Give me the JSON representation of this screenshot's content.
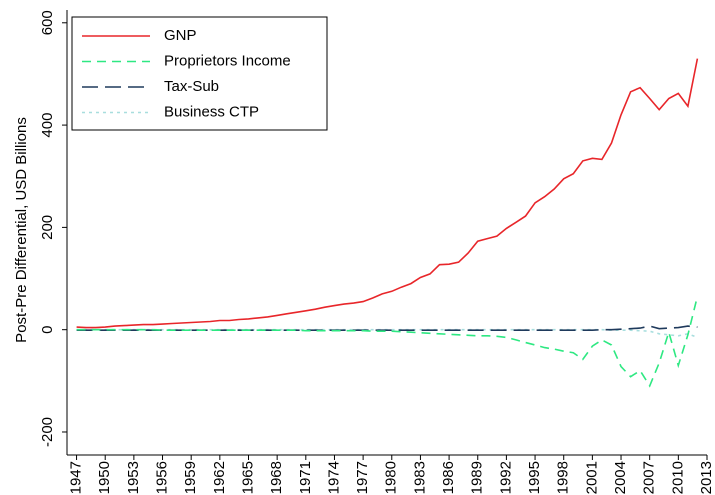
{
  "chart_data": {
    "type": "line",
    "y_label": "Post-Pre Differential, USD Billions",
    "x": [
      1947,
      1948,
      1949,
      1950,
      1951,
      1952,
      1953,
      1954,
      1955,
      1956,
      1957,
      1958,
      1959,
      1960,
      1961,
      1962,
      1963,
      1964,
      1965,
      1966,
      1967,
      1968,
      1969,
      1970,
      1971,
      1972,
      1973,
      1974,
      1975,
      1976,
      1977,
      1978,
      1979,
      1980,
      1981,
      1982,
      1983,
      1984,
      1985,
      1986,
      1987,
      1988,
      1989,
      1990,
      1991,
      1992,
      1993,
      1994,
      1995,
      1996,
      1997,
      1998,
      1999,
      2000,
      2001,
      2002,
      2003,
      2004,
      2005,
      2006,
      2007,
      2008,
      2009,
      2010,
      2011,
      2012
    ],
    "series": [
      {
        "name": "GNP",
        "color": "#e8262a",
        "style": "solid",
        "values": [
          5,
          4,
          4,
          5,
          7,
          8,
          9,
          10,
          10,
          11,
          12,
          13,
          14,
          15,
          16,
          18,
          18,
          20,
          21,
          23,
          25,
          28,
          31,
          34,
          37,
          40,
          44,
          47,
          50,
          52,
          55,
          62,
          70,
          75,
          83,
          90,
          102,
          109,
          127,
          128,
          132,
          150,
          173,
          178,
          183,
          198,
          210,
          222,
          248,
          260,
          275,
          295,
          305,
          330,
          335,
          333,
          365,
          420,
          465,
          473,
          452,
          430,
          452,
          462,
          437,
          530
        ]
      },
      {
        "name": "Proprietors Income",
        "color": "#2ee882",
        "style": "dashed",
        "values": [
          0,
          0,
          0,
          0,
          0,
          0,
          0,
          0,
          0,
          -1,
          -1,
          -1,
          -1,
          -1,
          -1,
          -1,
          -1,
          -1,
          -1,
          -1,
          -1,
          -1,
          -1,
          -1,
          -2,
          -2,
          -2,
          -2,
          -2,
          -2,
          -2,
          -3,
          -3,
          -3,
          -4,
          -5,
          -6,
          -7,
          -8,
          -9,
          -10,
          -11,
          -12,
          -12,
          -13,
          -15,
          -20,
          -25,
          -30,
          -35,
          -38,
          -42,
          -45,
          -58,
          -32,
          -20,
          -30,
          -72,
          -92,
          -80,
          -110,
          -65,
          -5,
          -70,
          -10,
          65
        ]
      },
      {
        "name": "Tax-Sub",
        "color": "#1f3a5c",
        "style": "longdash",
        "values": [
          -1,
          -1,
          -1,
          -1,
          -1,
          -1,
          -1,
          -1,
          -1,
          -1,
          -1,
          -1,
          -1,
          -1,
          -1,
          -1,
          -1,
          -1,
          -1,
          -1,
          -1,
          -1,
          -1,
          -1,
          -1,
          -1,
          -1,
          -1,
          -1,
          -1,
          -1,
          -1,
          -1,
          -1,
          -1,
          -1,
          -1,
          -1,
          -1,
          -1,
          -1,
          -1,
          -1,
          -1,
          -1,
          -1,
          -1,
          -1,
          -1,
          -1,
          -1,
          -1,
          -1,
          -1,
          -1,
          0,
          0,
          1,
          2,
          3,
          7,
          2,
          3,
          4,
          7,
          5
        ]
      },
      {
        "name": "Business CTP",
        "color": "#a8dede",
        "style": "dotted",
        "values": [
          0,
          0,
          0,
          0,
          0,
          0,
          0,
          0,
          0,
          0,
          0,
          0,
          0,
          0,
          0,
          0,
          0,
          0,
          0,
          0,
          0,
          0,
          0,
          0,
          0,
          0,
          0,
          0,
          0,
          0,
          0,
          0,
          0,
          0,
          0,
          0,
          0,
          0,
          0,
          0,
          0,
          0,
          0,
          0,
          0,
          0,
          0,
          0,
          0,
          0,
          0,
          0,
          0,
          0,
          0,
          0,
          -1,
          -1,
          -1,
          -2,
          -3,
          -8,
          -10,
          -12,
          -8,
          -15
        ]
      }
    ],
    "xlim": [
      1946,
      2013
    ],
    "xticks": [
      1947,
      1950,
      1953,
      1956,
      1959,
      1962,
      1965,
      1968,
      1971,
      1974,
      1977,
      1980,
      1983,
      1986,
      1989,
      1992,
      1995,
      1998,
      2001,
      2004,
      2007,
      2010,
      2013
    ],
    "ylim": [
      -245,
      625
    ],
    "yticks": [
      -200,
      0,
      200,
      400,
      600
    ],
    "legend": "top-left"
  }
}
